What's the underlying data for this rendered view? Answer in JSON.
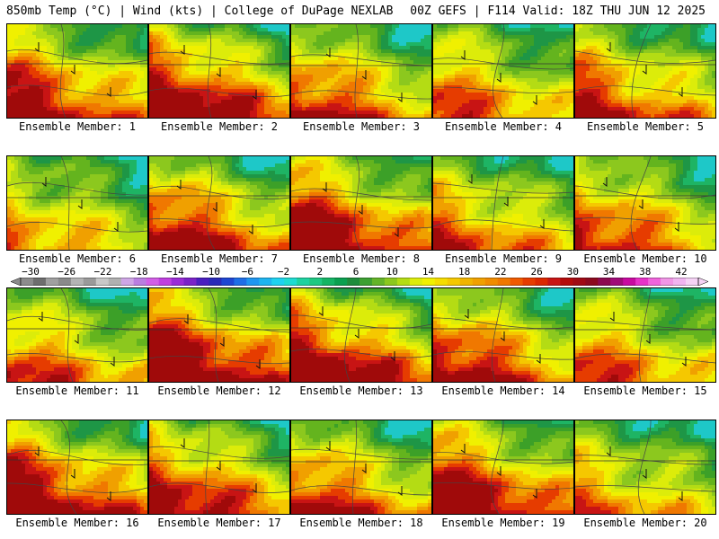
{
  "header": {
    "left": "850mb Temp (°C) | Wind (kts) | College of DuPage NEXLAB",
    "right": "00Z GEFS | F114 Valid: 18Z THU JUN 12 2025"
  },
  "members": [
    {
      "label": "Ensemble Member: 1"
    },
    {
      "label": "Ensemble Member: 2"
    },
    {
      "label": "Ensemble Member: 3"
    },
    {
      "label": "Ensemble Member: 4"
    },
    {
      "label": "Ensemble Member: 5"
    },
    {
      "label": "Ensemble Member: 6"
    },
    {
      "label": "Ensemble Member: 7"
    },
    {
      "label": "Ensemble Member: 8"
    },
    {
      "label": "Ensemble Member: 9"
    },
    {
      "label": "Ensemble Member: 10"
    },
    {
      "label": "Ensemble Member: 11"
    },
    {
      "label": "Ensemble Member: 12"
    },
    {
      "label": "Ensemble Member: 13"
    },
    {
      "label": "Ensemble Member: 14"
    },
    {
      "label": "Ensemble Member: 15"
    },
    {
      "label": "Ensemble Member: 16"
    },
    {
      "label": "Ensemble Member: 17"
    },
    {
      "label": "Ensemble Member: 18"
    },
    {
      "label": "Ensemble Member: 19"
    },
    {
      "label": "Ensemble Member: 20"
    }
  ],
  "colorbar": {
    "tick_labels": [
      "−30",
      "−26",
      "−22",
      "−18",
      "−14",
      "−10",
      "−6",
      "−2",
      "2",
      "6",
      "10",
      "14",
      "18",
      "22",
      "26",
      "30",
      "34",
      "38",
      "42"
    ],
    "colors": [
      "#8c8c8c",
      "#6e6e6e",
      "#a0a0a0",
      "#8a8a8a",
      "#b4b4b4",
      "#9a9a9a",
      "#c8c8c8",
      "#b0b0b0",
      "#cfa6e6",
      "#b97ee0",
      "#d25fe6",
      "#c040e0",
      "#9a2cd6",
      "#7a22c8",
      "#4a1ec0",
      "#2a2ab8",
      "#1e46d2",
      "#1e6ee6",
      "#1e96f0",
      "#1eb4f0",
      "#1ed2f0",
      "#1edcd2",
      "#1ed2a0",
      "#1ec882",
      "#14b464",
      "#0aa050",
      "#1e8c3c",
      "#3ca032",
      "#64b428",
      "#8cc81e",
      "#b4dc14",
      "#dcec0a",
      "#f0f000",
      "#f5dc00",
      "#f5c800",
      "#f0b400",
      "#f0a000",
      "#f08c00",
      "#f07800",
      "#f05a00",
      "#e63c00",
      "#dc2800",
      "#c81414",
      "#b40a0a",
      "#a00a14",
      "#8c0a1e",
      "#8c0a50",
      "#a00a78",
      "#c80aa0",
      "#e632c8",
      "#f064dc",
      "#f096e6",
      "#f0b4f0",
      "#f5d2f5"
    ]
  }
}
